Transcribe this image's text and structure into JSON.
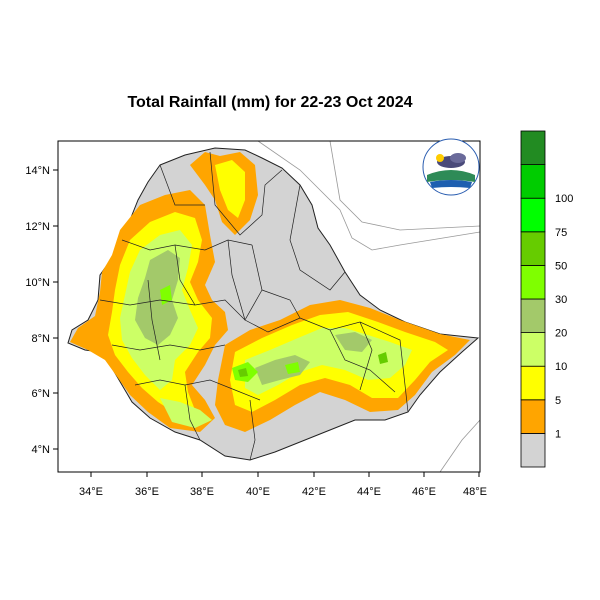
{
  "title": "Total Rainfall (mm) for 22-23 Oct 2024",
  "axes": {
    "lon_ticks": [
      "34°E",
      "36°E",
      "38°E",
      "40°E",
      "42°E",
      "44°E",
      "46°E",
      "48°E"
    ],
    "lat_ticks": [
      "14°N",
      "12°N",
      "10°N",
      "8°N",
      "6°N",
      "4°N"
    ]
  },
  "legend": {
    "bins": [
      {
        "label": "",
        "color": "#d3d3d3"
      },
      {
        "label": "1",
        "color": "#ffa500"
      },
      {
        "label": "5",
        "color": "#ffff00"
      },
      {
        "label": "10",
        "color": "#ccff66"
      },
      {
        "label": "20",
        "color": "#a3c96a"
      },
      {
        "label": "30",
        "color": "#7fff00"
      },
      {
        "label": "50",
        "color": "#66cc00"
      },
      {
        "label": "75",
        "color": "#00ff00"
      },
      {
        "label": "100",
        "color": "#00cc00"
      },
      {
        "label": "",
        "color": "#228b22"
      }
    ]
  },
  "colors": {
    "land": "#d3d3d3",
    "background": "#ffffff",
    "border": "#000000"
  },
  "logo_icon": "ethiopian-meteorology-institute-logo"
}
